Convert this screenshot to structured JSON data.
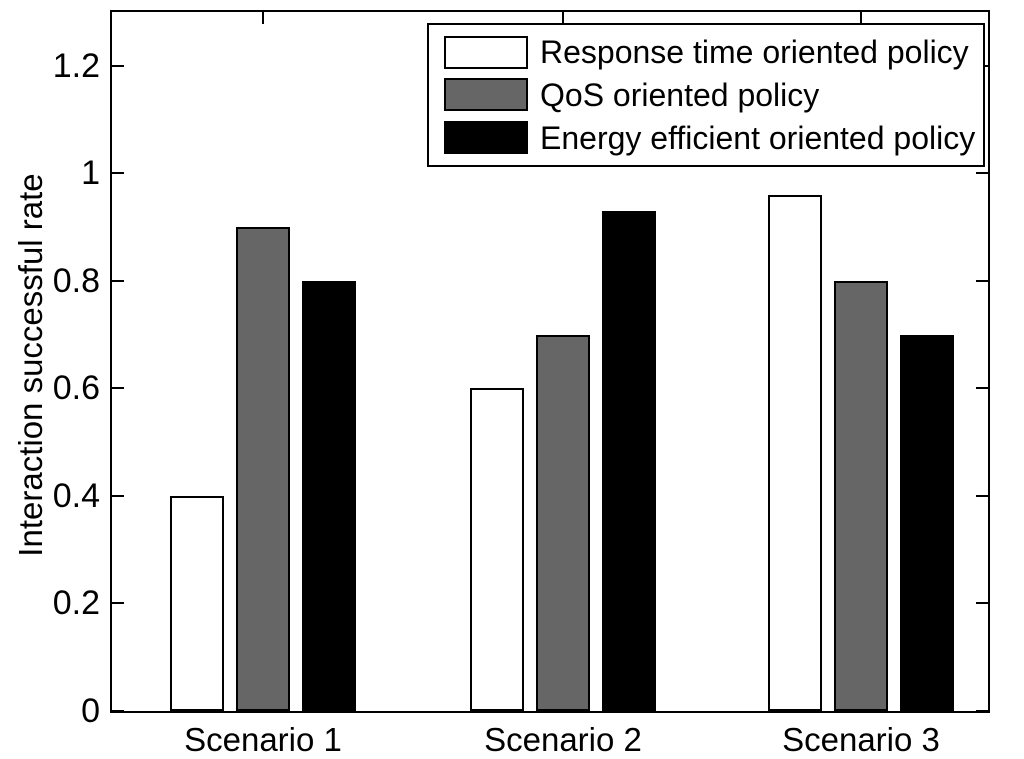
{
  "chart_data": {
    "type": "bar",
    "categories": [
      "Scenario 1",
      "Scenario 2",
      "Scenario 3"
    ],
    "series": [
      {
        "name": "Response time oriented policy",
        "color": "#ffffff",
        "values": [
          0.4,
          0.6,
          0.96
        ]
      },
      {
        "name": "QoS oriented policy",
        "color": "#666666",
        "values": [
          0.9,
          0.7,
          0.8
        ]
      },
      {
        "name": "Energy efficient oriented policy",
        "color": "#000000",
        "values": [
          0.8,
          0.93,
          0.7
        ]
      }
    ],
    "title": "",
    "xlabel": "",
    "ylabel": "Interaction successful rate",
    "ylim": [
      0,
      1.3
    ],
    "yticks": [
      0,
      0.2,
      0.4,
      0.6,
      0.8,
      1,
      1.2
    ],
    "ytick_labels": [
      "0",
      "0.2",
      "0.4",
      "0.6",
      "0.8",
      "1",
      "1.2"
    ],
    "grid": false,
    "legend_position": "top-right",
    "bar_edge_color": "#000000",
    "axis_color": "#000000"
  }
}
